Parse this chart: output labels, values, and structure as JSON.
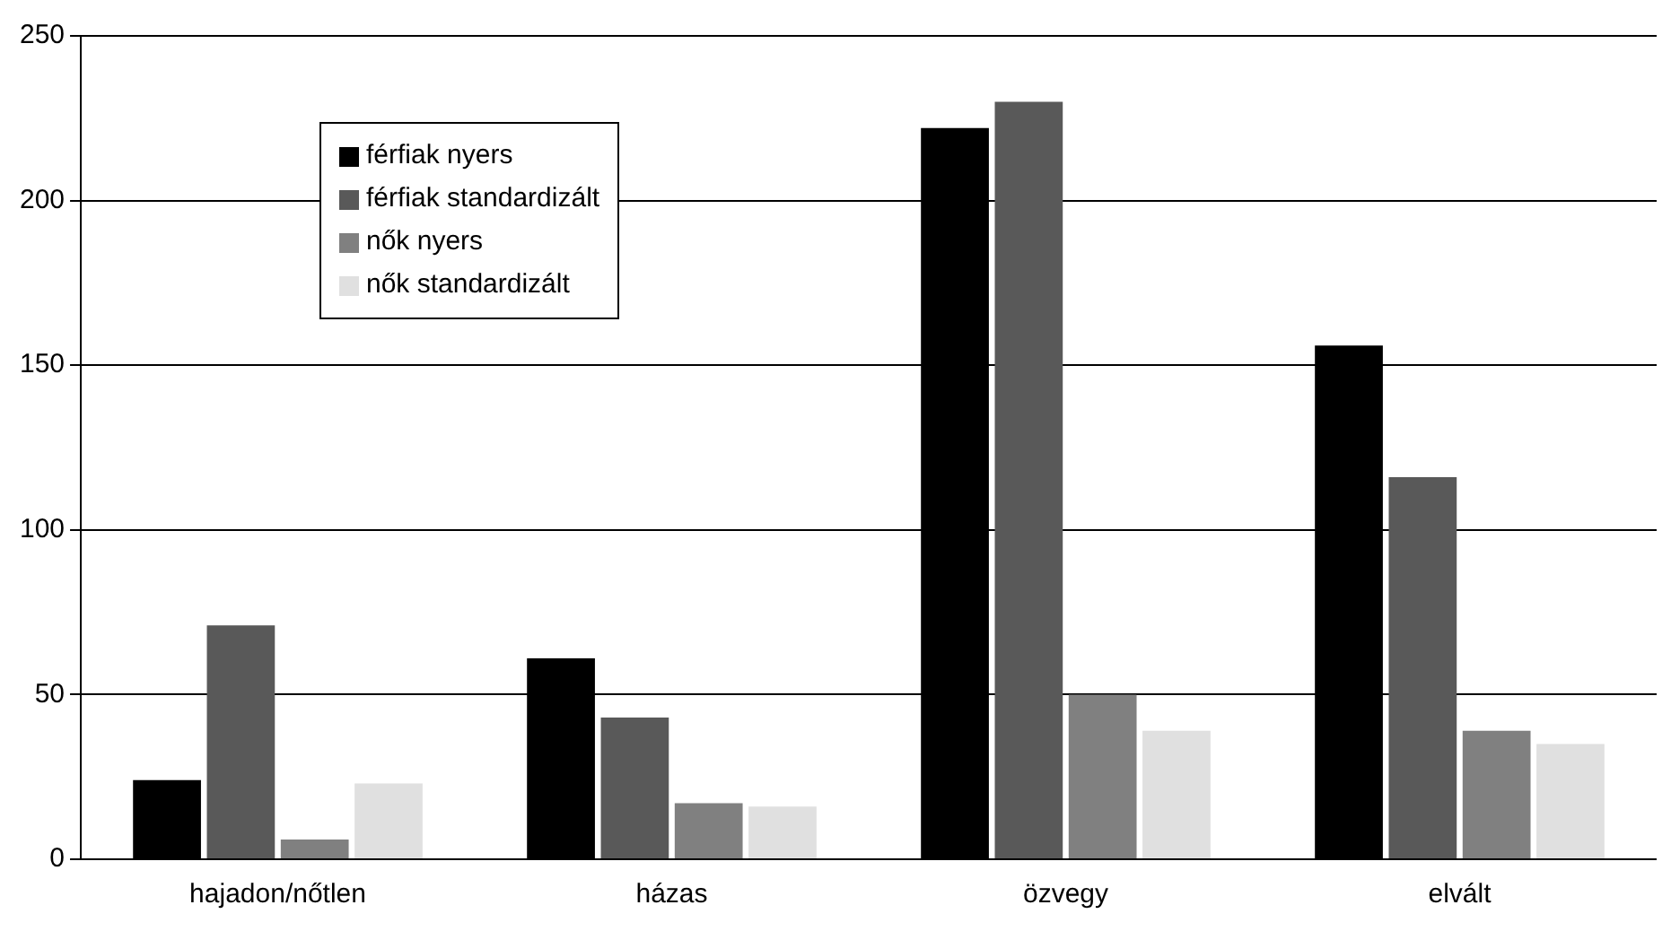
{
  "chart_data": {
    "type": "bar",
    "categories": [
      "hajadon/nőtlen",
      "házas",
      "özvegy",
      "elvált"
    ],
    "series": [
      {
        "name": "férfiak nyers",
        "color": "#000000",
        "values": [
          24,
          61,
          222,
          156
        ]
      },
      {
        "name": "férfiak standardizált",
        "color": "#595959",
        "values": [
          71,
          43,
          230,
          116
        ]
      },
      {
        "name": "nők nyers",
        "color": "#808080",
        "values": [
          6,
          17,
          50,
          39
        ]
      },
      {
        "name": "nők standardizált",
        "color": "#e0e0e0",
        "values": [
          23,
          16,
          39,
          35
        ]
      }
    ],
    "ylim": [
      0,
      250
    ],
    "yticks": [
      0,
      50,
      100,
      150,
      200,
      250
    ],
    "grid": "y",
    "legend": "top left"
  }
}
